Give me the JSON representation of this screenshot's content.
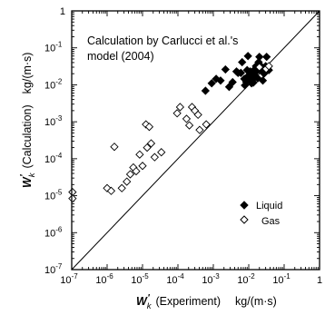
{
  "chart_data": {
    "type": "scatter",
    "xscale": "log",
    "yscale": "log",
    "xlim": [
      1e-07,
      1
    ],
    "ylim": [
      1e-07,
      1
    ],
    "xlabel_symbol": "W",
    "xlabel_sub": "k",
    "xlabel_text": "(Experiment)",
    "xlabel_unit": "kg/(m·s)",
    "ylabel_symbol": "W",
    "ylabel_sub": "k",
    "ylabel_text": "(Calculation)",
    "ylabel_unit": "kg/(m·s)",
    "xticks": [
      {
        "base": "10",
        "exp": "-7"
      },
      {
        "base": "10",
        "exp": "-6"
      },
      {
        "base": "10",
        "exp": "-5"
      },
      {
        "base": "10",
        "exp": "-4"
      },
      {
        "base": "10",
        "exp": "-3"
      },
      {
        "base": "10",
        "exp": "-2"
      },
      {
        "base": "10",
        "exp": "-1"
      },
      {
        "base": "1",
        "exp": ""
      }
    ],
    "yticks": [
      {
        "base": "10",
        "exp": "-7"
      },
      {
        "base": "10",
        "exp": "-6"
      },
      {
        "base": "10",
        "exp": "-5"
      },
      {
        "base": "10",
        "exp": "-4"
      },
      {
        "base": "10",
        "exp": "-3"
      },
      {
        "base": "10",
        "exp": "-2"
      },
      {
        "base": "10",
        "exp": "-1"
      },
      {
        "base": "1",
        "exp": ""
      }
    ],
    "annotation": [
      "Calculation by Carlucci et al.'s",
      "model (2004)"
    ],
    "reference_line": "y = x",
    "legend_position": "right",
    "series": [
      {
        "name": "Liquid",
        "marker": "filled-diamond",
        "points": [
          [
            0.0006,
            0.0069
          ],
          [
            0.0009,
            0.011
          ],
          [
            0.0012,
            0.0145
          ],
          [
            0.0016,
            0.013
          ],
          [
            0.0022,
            0.026
          ],
          [
            0.0028,
            0.0088
          ],
          [
            0.0035,
            0.0118
          ],
          [
            0.0045,
            0.023
          ],
          [
            0.005,
            0.021
          ],
          [
            0.006,
            0.021
          ],
          [
            0.0065,
            0.041
          ],
          [
            0.0075,
            0.0145
          ],
          [
            0.0078,
            0.0097
          ],
          [
            0.0085,
            0.012
          ],
          [
            0.009,
            0.025
          ],
          [
            0.0095,
            0.06
          ],
          [
            0.01,
            0.018
          ],
          [
            0.011,
            0.023
          ],
          [
            0.0115,
            0.0145
          ],
          [
            0.012,
            0.011
          ],
          [
            0.0125,
            0.021
          ],
          [
            0.013,
            0.014
          ],
          [
            0.0135,
            0.0115
          ],
          [
            0.014,
            0.025
          ],
          [
            0.015,
            0.018
          ],
          [
            0.016,
            0.032
          ],
          [
            0.017,
            0.024
          ],
          [
            0.018,
            0.015
          ],
          [
            0.019,
            0.041
          ],
          [
            0.02,
            0.057
          ],
          [
            0.021,
            0.025
          ],
          [
            0.023,
            0.031
          ],
          [
            0.025,
            0.013
          ],
          [
            0.027,
            0.02
          ],
          [
            0.03,
            0.032
          ],
          [
            0.032,
            0.057
          ],
          [
            0.034,
            0.027
          ],
          [
            0.037,
            0.025
          ]
        ]
      },
      {
        "name": "Gas",
        "marker": "open-diamond",
        "points": [
          [
            1.05e-07,
            1.25e-05
          ],
          [
            1.05e-07,
            8.4e-06
          ],
          [
            1e-06,
            1.6e-05
          ],
          [
            1.3e-06,
            1.35e-05
          ],
          [
            1.6e-06,
            0.00021
          ],
          [
            2.6e-06,
            1.6e-05
          ],
          [
            3.6e-06,
            2.4e-05
          ],
          [
            4.5e-06,
            3.8e-05
          ],
          [
            5.5e-06,
            5.8e-05
          ],
          [
            6.6e-06,
            4.6e-05
          ],
          [
            8.3e-06,
            0.00013
          ],
          [
            1e-05,
            6.4e-05
          ],
          [
            1.25e-05,
            0.00085
          ],
          [
            1.35e-05,
            0.0002
          ],
          [
            1.55e-05,
            0.00073
          ],
          [
            1.75e-05,
            0.00026
          ],
          [
            2.2e-05,
            0.00011
          ],
          [
            3.4e-05,
            0.00015
          ],
          [
            9.5e-05,
            0.0017
          ],
          [
            0.000115,
            0.0025
          ],
          [
            0.000175,
            0.0012
          ],
          [
            0.00021,
            0.0008
          ],
          [
            0.00025,
            0.0025
          ],
          [
            0.0003,
            0.002
          ],
          [
            0.00037,
            0.00155
          ],
          [
            0.00041,
            0.0006
          ],
          [
            0.00063,
            0.00085
          ],
          [
            0.02,
            0.03
          ],
          [
            0.031,
            0.027
          ],
          [
            0.037,
            0.032
          ]
        ]
      }
    ]
  }
}
